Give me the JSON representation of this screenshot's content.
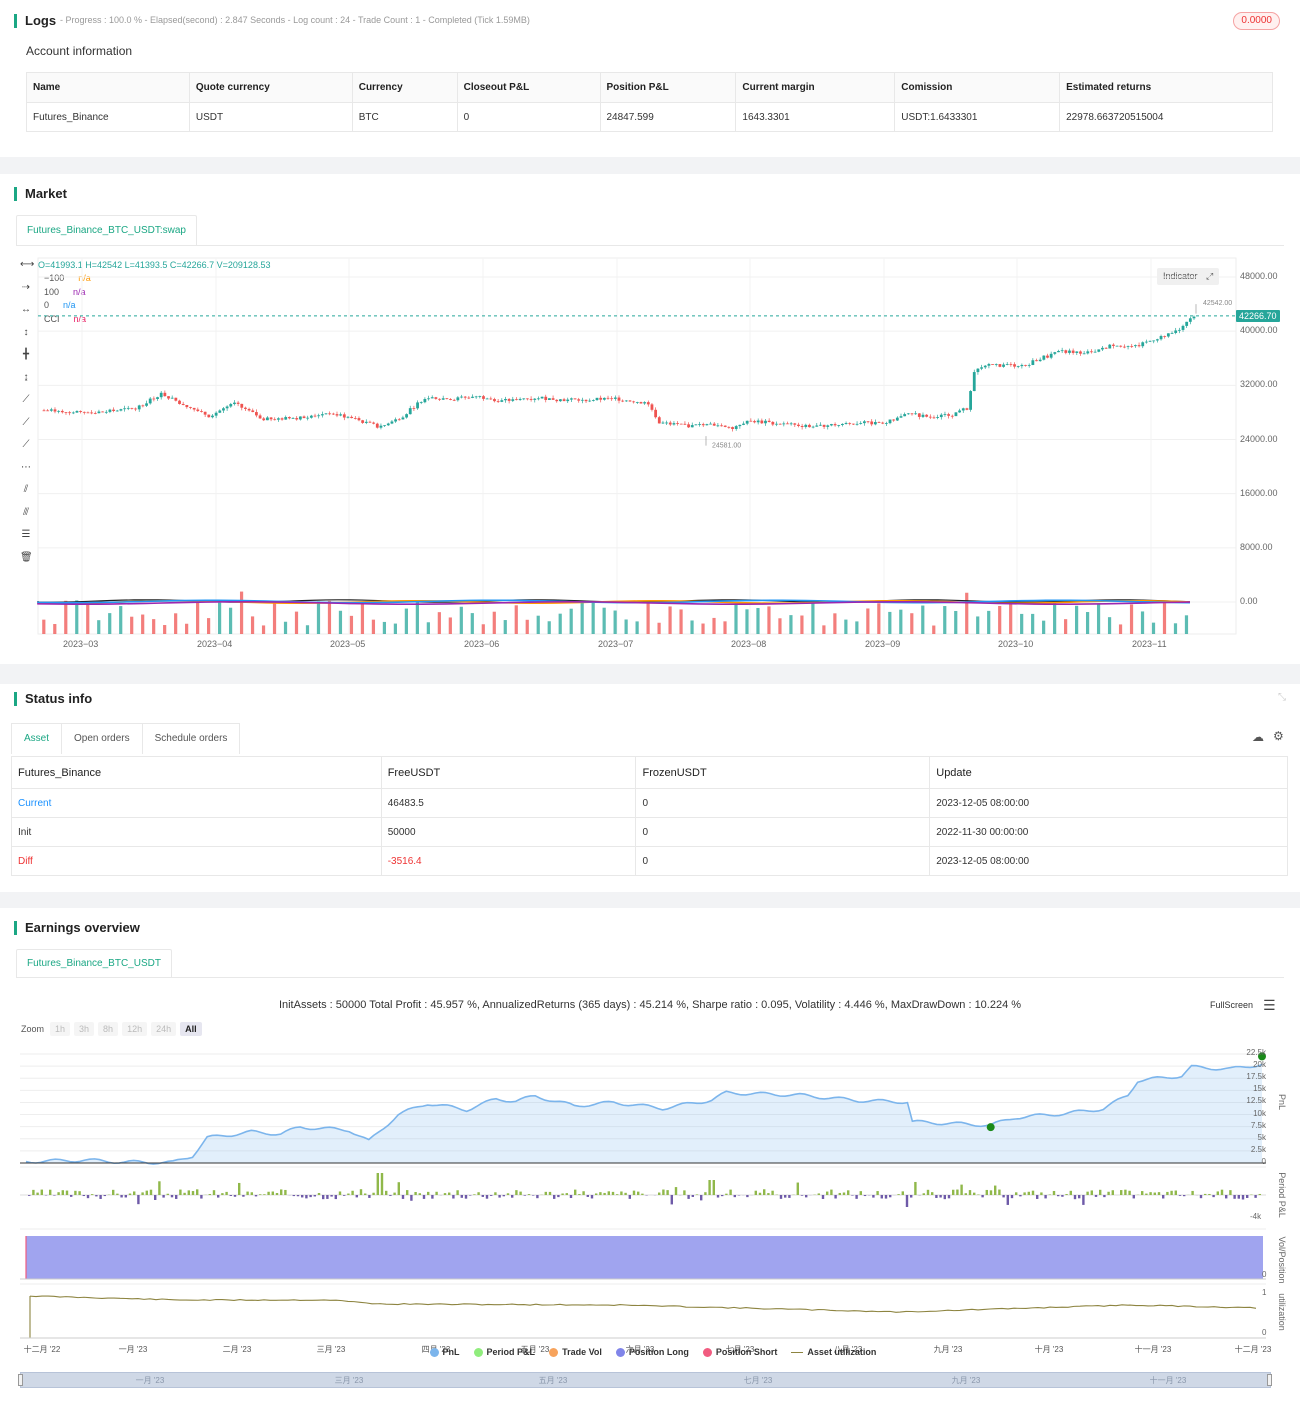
{
  "logs": {
    "title": "Logs",
    "meta": "- Progress : 100.0 % - Elapsed(second) : 2.847  Seconds - Log count : 24 - Trade Count : 1 - Completed (Tick 1.59MB)",
    "badge": "0.0000",
    "account_title": "Account information",
    "headers": [
      "Name",
      "Quote currency",
      "Currency",
      "Closeout P&L",
      "Position P&L",
      "Current margin",
      "Comission",
      "Estimated returns"
    ],
    "row": [
      "Futures_Binance",
      "USDT",
      "BTC",
      "0",
      "24847.599",
      "1643.3301",
      "USDT:1.6433301",
      "22978.663720515004"
    ]
  },
  "market": {
    "title": "Market",
    "tab": "Futures_Binance_BTC_USDT:swap",
    "ohlc": "O=41993.1 H=42542 L=41393.5 C=42266.7 V=209128.53",
    "legend": [
      {
        "label": "−100",
        "value": "n/a",
        "color": "#ff9800"
      },
      {
        "label": "100",
        "value": "n/a",
        "color": "#9c27b0"
      },
      {
        "label": "0",
        "value": "n/a",
        "color": "#2196f3"
      },
      {
        "label": "CCI",
        "value": "n/a",
        "color": "#e91e63"
      }
    ],
    "indicator_btn": "Indicator",
    "price_axis": [
      "48000.00",
      "40000.00",
      "32000.00",
      "24000.00",
      "16000.00",
      "8000.00",
      "0.00"
    ],
    "last_price": "42266.70",
    "high_label": "42542.00",
    "low_label": "24581.00",
    "time_axis": [
      "2023−03",
      "2023−04",
      "2023−05",
      "2023−06",
      "2023−07",
      "2023−08",
      "2023−09",
      "2023−10",
      "2023−11"
    ],
    "colors": {
      "up": "#26a69a",
      "down": "#ef5350"
    }
  },
  "status": {
    "title": "Status info",
    "tabs": [
      "Asset",
      "Open orders",
      "Schedule orders"
    ],
    "headers": [
      "Futures_Binance",
      "FreeUSDT",
      "FrozenUSDT",
      "Update"
    ],
    "rows": [
      {
        "name": "Current",
        "free": "46483.5",
        "frozen": "0",
        "update": "2023-12-05 08:00:00"
      },
      {
        "name": "Init",
        "free": "50000",
        "frozen": "0",
        "update": "2022-11-30 00:00:00"
      },
      {
        "name": "Diff",
        "free": "-3516.4",
        "frozen": "0",
        "update": "2023-12-05 08:00:00"
      }
    ]
  },
  "earnings": {
    "title": "Earnings overview",
    "tab": "Futures_Binance_BTC_USDT",
    "summary": "InitAssets : 50000 Total Profit : 45.957 %, AnnualizedReturns (365 days) : 45.214 %, Sharpe ratio : 0.095, Volatility : 4.446 %, MaxDrawDown : 10.224 %",
    "fullscreen": "FullScreen",
    "zoom_label": "Zoom",
    "zoom": [
      "1h",
      "3h",
      "8h",
      "12h",
      "24h",
      "All"
    ],
    "pnl_axis": [
      "22.5k",
      "20k",
      "17.5k",
      "15k",
      "12.5k",
      "10k",
      "7.5k",
      "5k",
      "2.5k",
      "0"
    ],
    "period_axis": [
      "-4k"
    ],
    "vol_axis": [
      "0"
    ],
    "util_axis": [
      "1",
      "0"
    ],
    "axis_titles": [
      "PnL",
      "Period P&L",
      "Vol/Position",
      "utilization"
    ],
    "time_axis": [
      "十二月 '22",
      "一月 '23",
      "二月 '23",
      "三月 '23",
      "四月 '23",
      "五月 '23",
      "六月 '23",
      "七月 '23",
      "八月 '23",
      "九月 '23",
      "十月 '23",
      "十一月 '23",
      "十二月 '23"
    ],
    "nav_axis": [
      "一月 '23",
      "三月 '23",
      "五月 '23",
      "七月 '23",
      "九月 '23",
      "十一月 '23"
    ],
    "legend": [
      {
        "label": "PnL",
        "color": "#7cb5ec"
      },
      {
        "label": "Period P&L",
        "color": "#90ed7d"
      },
      {
        "label": "Trade Vol",
        "color": "#f7a35c"
      },
      {
        "label": "Position Long",
        "color": "#8085e9"
      },
      {
        "label": "Position Short",
        "color": "#f15c80"
      },
      {
        "label": "Asset utilization",
        "color": "#8d8440"
      }
    ]
  }
}
